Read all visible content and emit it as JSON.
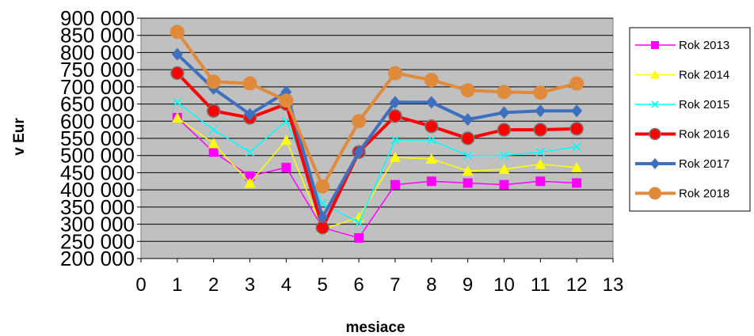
{
  "chart_data": {
    "type": "line",
    "xlabel": "mesiace",
    "ylabel": "v Eur",
    "xlim": [
      0,
      13
    ],
    "ylim": [
      200000,
      900000
    ],
    "x_ticks": [
      "0",
      "1",
      "2",
      "3",
      "4",
      "5",
      "6",
      "7",
      "8",
      "9",
      "10",
      "11",
      "12",
      "13"
    ],
    "y_ticks": [
      "200 000",
      "250 000",
      "300 000",
      "350 000",
      "400 000",
      "450 000",
      "500 000",
      "550 000",
      "600 000",
      "650 000",
      "700 000",
      "750 000",
      "800 000",
      "850 000",
      "900 000"
    ],
    "grid": true,
    "plot_background": "#c0c0c0",
    "legend_position": "right",
    "x": [
      1,
      2,
      3,
      4,
      5,
      6,
      7,
      8,
      9,
      10,
      11,
      12
    ],
    "series": [
      {
        "name": "Rok 2013",
        "color": "#ff00ff",
        "marker": "square",
        "values": [
          610000,
          510000,
          440000,
          465000,
          290000,
          260000,
          415000,
          425000,
          420000,
          415000,
          425000,
          420000
        ]
      },
      {
        "name": "Rok 2014",
        "color": "#ffff00",
        "marker": "triangle",
        "values": [
          610000,
          535000,
          420000,
          545000,
          285000,
          320000,
          495000,
          490000,
          455000,
          460000,
          475000,
          465000
        ]
      },
      {
        "name": "Rok 2015",
        "color": "#00ffff",
        "marker": "x",
        "values": [
          655000,
          575000,
          510000,
          600000,
          360000,
          305000,
          545000,
          545000,
          500000,
          500000,
          510000,
          525000
        ]
      },
      {
        "name": "Rok 2016",
        "color": "#ff0000",
        "marker": "circle-dot",
        "values": [
          740000,
          630000,
          610000,
          650000,
          290000,
          510000,
          615000,
          585000,
          550000,
          575000,
          575000,
          578000
        ]
      },
      {
        "name": "Rok 2017",
        "color": "#3f6fbf",
        "marker": "diamond",
        "values": [
          795000,
          695000,
          620000,
          685000,
          320000,
          510000,
          655000,
          655000,
          605000,
          625000,
          630000,
          630000
        ]
      },
      {
        "name": "Rok 2018",
        "color": "#e08a3c",
        "marker": "circle",
        "values": [
          860000,
          715000,
          710000,
          660000,
          410000,
          600000,
          740000,
          720000,
          690000,
          685000,
          683000,
          710000
        ]
      }
    ]
  }
}
